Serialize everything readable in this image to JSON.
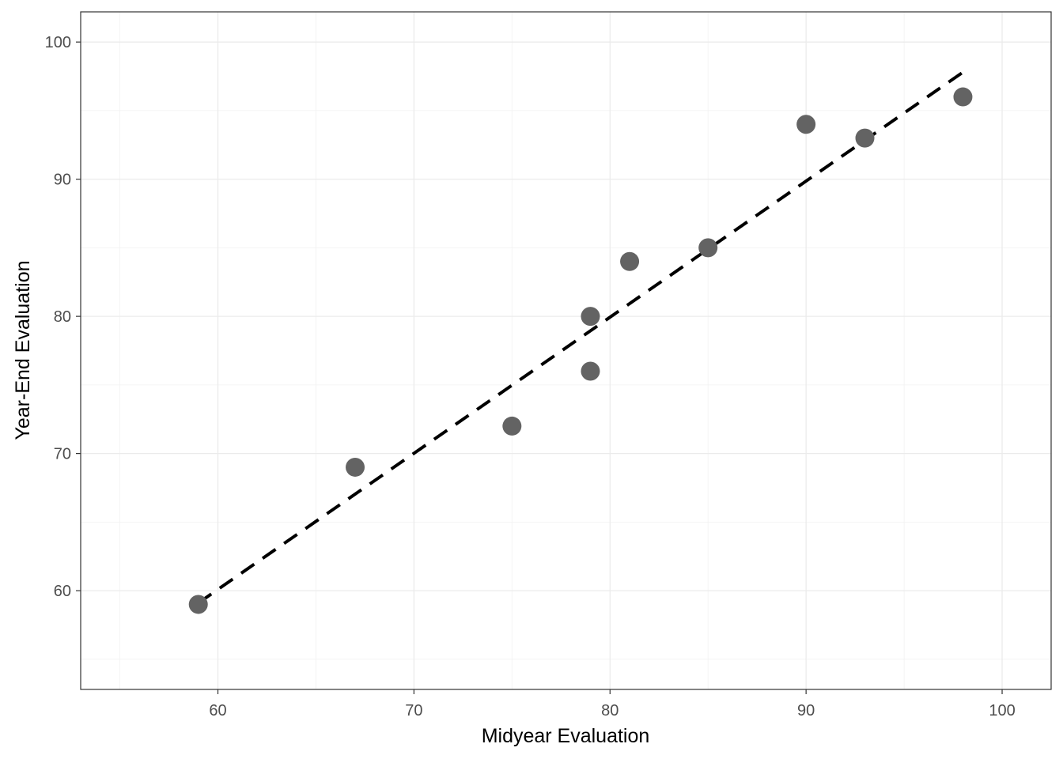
{
  "chart_data": {
    "type": "scatter",
    "title": "",
    "xlabel": "Midyear Evaluation",
    "ylabel": "Year-End Evaluation",
    "xlim": [
      53,
      102.5
    ],
    "ylim": [
      52.8,
      102.2
    ],
    "x_ticks": [
      60,
      70,
      80,
      90,
      100
    ],
    "y_ticks": [
      60,
      70,
      80,
      90,
      100
    ],
    "x_tick_labels": [
      "60",
      "70",
      "80",
      "90",
      "100"
    ],
    "y_tick_labels": [
      "60",
      "70",
      "80",
      "90",
      "100"
    ],
    "x_minor_ticks": [
      55,
      65,
      75,
      85,
      95
    ],
    "y_minor_ticks": [
      55,
      65,
      75,
      85,
      95
    ],
    "grid": true,
    "series": [
      {
        "points": [
          {
            "x": 59,
            "y": 59
          },
          {
            "x": 67,
            "y": 69
          },
          {
            "x": 75,
            "y": 72
          },
          {
            "x": 79,
            "y": 76
          },
          {
            "x": 79,
            "y": 80
          },
          {
            "x": 81,
            "y": 84
          },
          {
            "x": 85,
            "y": 85
          },
          {
            "x": 90,
            "y": 94
          },
          {
            "x": 93,
            "y": 93
          },
          {
            "x": 98,
            "y": 96
          }
        ],
        "color": "#636363"
      }
    ],
    "fit_line": {
      "style": "dashed",
      "color": "#000000",
      "from": {
        "x": 59,
        "y": 59.1
      },
      "to": {
        "x": 98,
        "y": 97.8
      }
    }
  }
}
